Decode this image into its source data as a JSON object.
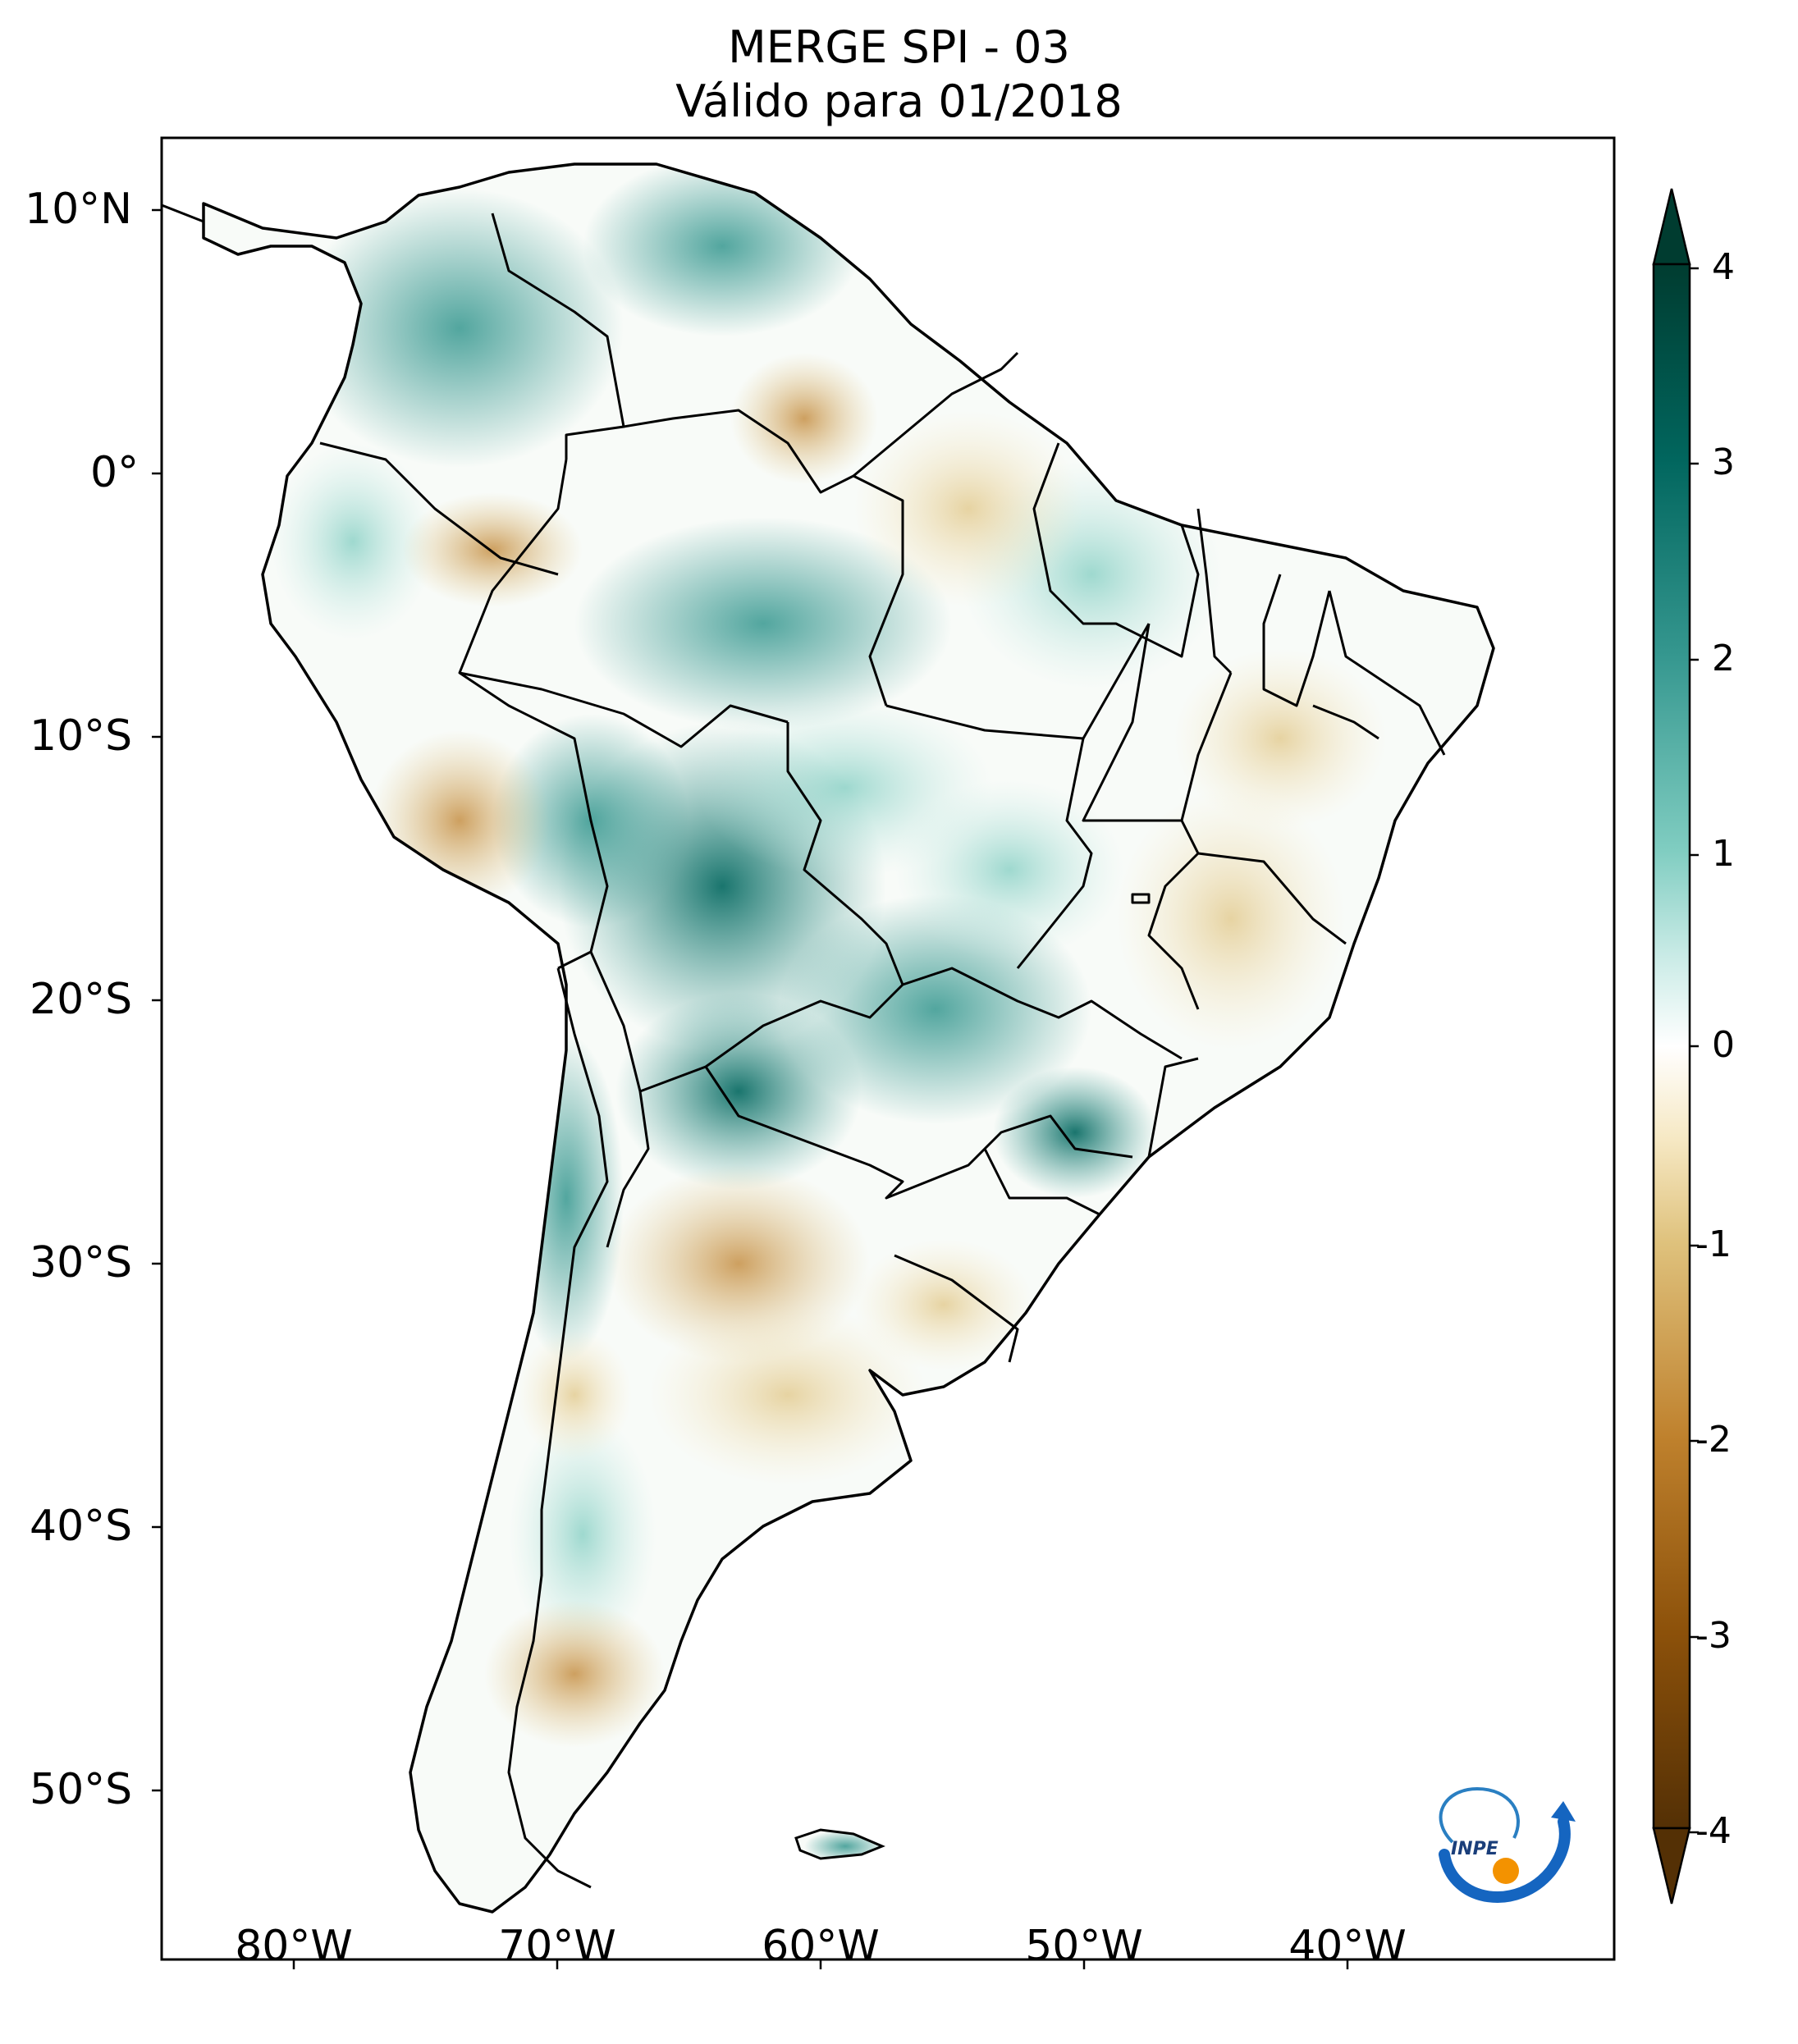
{
  "title": {
    "line1": "MERGE   SPI - 03",
    "line2": "Válido para 01/2018"
  },
  "map": {
    "region": "South America",
    "latitude_labels": [
      "10°N",
      "0°",
      "10°S",
      "20°S",
      "30°S",
      "40°S",
      "50°S"
    ],
    "longitude_labels": [
      "80°W",
      "70°W",
      "60°W",
      "50°W",
      "40°W"
    ]
  },
  "colorbar": {
    "ticks": [
      "4",
      "3",
      "2",
      "1",
      "0",
      "-1",
      "-2",
      "-3",
      "-4"
    ],
    "min": -4,
    "max": 4,
    "colors": {
      "wet_strong": "#003c30",
      "wet": "#35978f",
      "wet_light": "#c7eae5",
      "neutral": "#ffffff",
      "dry_light": "#f6e8c3",
      "dry": "#bf812d",
      "dry_strong": "#543005"
    }
  },
  "logo": {
    "text": "INPE"
  }
}
